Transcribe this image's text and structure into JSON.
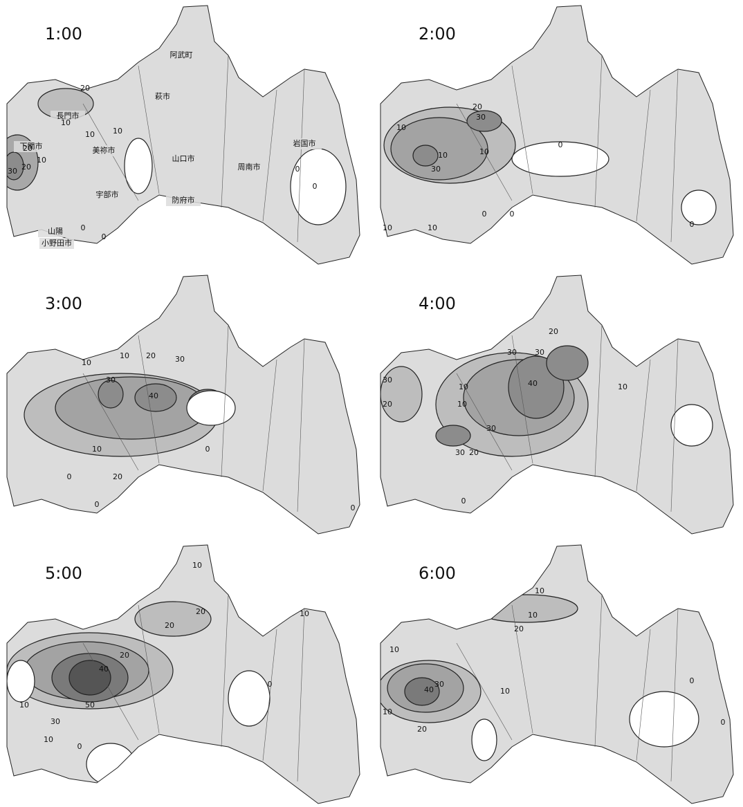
{
  "panels": [
    {
      "time": "1:00",
      "cities": [
        "阿武町",
        "萩市",
        "長門市",
        "下関市",
        "美祢市",
        "山口市",
        "周南市",
        "岩国市",
        "宇部市",
        "防府市",
        "山陽",
        "小野田市"
      ],
      "contour_labels": [
        "20",
        "10",
        "20",
        "10",
        "10",
        "20",
        "30",
        "10",
        "0",
        "0",
        "0",
        "0"
      ]
    },
    {
      "time": "2:00",
      "contour_labels": [
        "10",
        "20",
        "30",
        "10",
        "30",
        "10",
        "0",
        "0",
        "10",
        "0",
        "0",
        "10"
      ]
    },
    {
      "time": "3:00",
      "contour_labels": [
        "10",
        "10",
        "20",
        "30",
        "30",
        "40",
        "10",
        "20",
        "0",
        "0",
        "0",
        "0"
      ]
    },
    {
      "time": "4:00",
      "contour_labels": [
        "10",
        "20",
        "30",
        "30",
        "40",
        "30",
        "30",
        "20",
        "10",
        "20",
        "30",
        "10",
        "0"
      ]
    },
    {
      "time": "5:00",
      "contour_labels": [
        "10",
        "20",
        "20",
        "20",
        "40",
        "50",
        "30",
        "10",
        "10",
        "0",
        "0",
        "10"
      ]
    },
    {
      "time": "6:00",
      "contour_labels": [
        "10",
        "10",
        "20",
        "10",
        "40",
        "30",
        "10",
        "20",
        "10",
        "0",
        "0"
      ]
    }
  ]
}
